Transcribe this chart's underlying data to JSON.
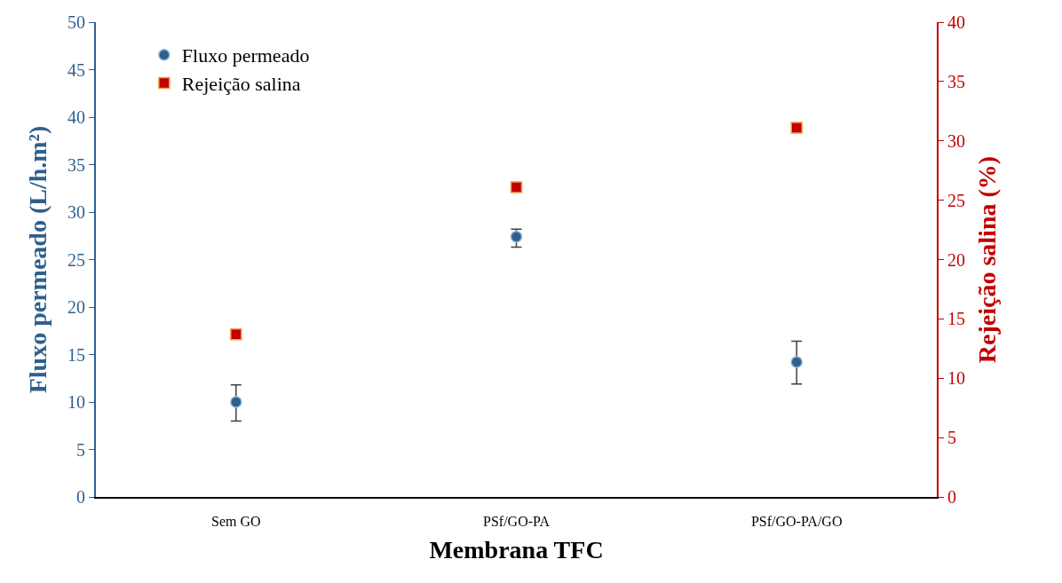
{
  "chart_data": {
    "type": "scatter",
    "categories": [
      "Sem GO",
      "PSf/GO-PA",
      "PSf/GO-PA/GO"
    ],
    "xlabel": "Membrana TFC",
    "ylabel": "Fluxo permeado (L/h.m²)",
    "y2label": "Rejeição salina (%)",
    "series": [
      {
        "name": "Fluxo permeado",
        "color": "#2e5f8f",
        "marker": "circle",
        "values": [
          10.0,
          27.4,
          14.2
        ],
        "errors": [
          [
            8.0,
            11.8
          ],
          [
            26.3,
            28.2
          ],
          [
            11.9,
            16.4
          ]
        ]
      },
      {
        "name": "Rejeição salina",
        "color": "#c00000",
        "marker": "square",
        "axis": "y2",
        "values": [
          13.7,
          26.1,
          31.1
        ]
      }
    ],
    "ylim": [
      0,
      50
    ],
    "yticks": [
      0,
      5,
      10,
      15,
      20,
      25,
      30,
      35,
      40,
      45,
      50
    ],
    "y2lim": [
      0,
      40
    ],
    "y2ticks": [
      0,
      5,
      10,
      15,
      20,
      25,
      30,
      35,
      40
    ],
    "legend": "top left"
  }
}
